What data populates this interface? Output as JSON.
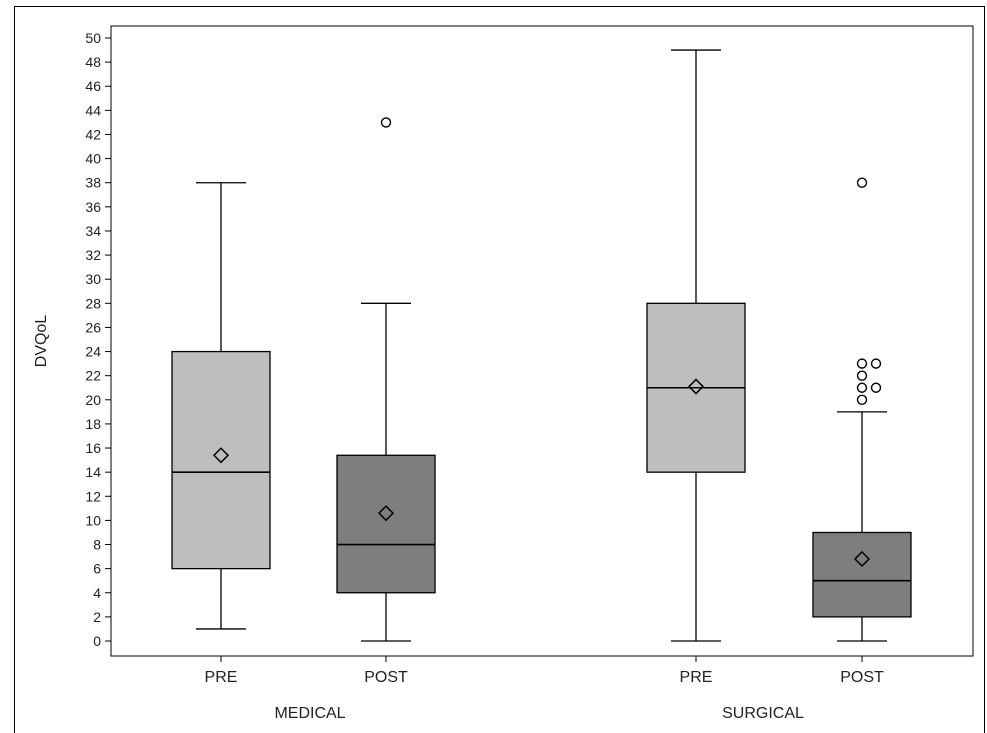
{
  "chart_data": {
    "type": "box",
    "ylabel": "DVQoL",
    "ylim": [
      0,
      50
    ],
    "yticks": [
      0,
      2,
      4,
      6,
      8,
      10,
      12,
      14,
      16,
      18,
      20,
      22,
      24,
      26,
      28,
      30,
      32,
      34,
      36,
      38,
      40,
      42,
      44,
      46,
      48,
      50
    ],
    "grid": false,
    "legend": "none",
    "groups": [
      {
        "name": "MEDICAL",
        "boxes": [
          {
            "label": "PRE",
            "fill": "#bebebe",
            "whisker_low": 1,
            "q1": 6,
            "median": 14,
            "q3": 24,
            "whisker_high": 38,
            "mean": 15.4,
            "outliers": []
          },
          {
            "label": "POST",
            "fill": "#7e7e7e",
            "whisker_low": 0,
            "q1": 4,
            "median": 8,
            "q3": 15.4,
            "whisker_high": 28,
            "mean": 10.6,
            "outliers": [
              43
            ]
          }
        ]
      },
      {
        "name": "SURGICAL",
        "boxes": [
          {
            "label": "PRE",
            "fill": "#bebebe",
            "whisker_low": 0,
            "q1": 14,
            "median": 21,
            "q3": 28,
            "whisker_high": 49,
            "mean": 21.1,
            "outliers": []
          },
          {
            "label": "POST",
            "fill": "#7e7e7e",
            "whisker_low": 0,
            "q1": 2,
            "median": 5,
            "q3": 9,
            "whisker_high": 19,
            "mean": 6.8,
            "outliers": [
              {
                "v": 20,
                "col": 0
              },
              {
                "v": 21,
                "col": 0
              },
              {
                "v": 22,
                "col": 0
              },
              {
                "v": 23,
                "col": 0
              },
              {
                "v": 21,
                "col": 1
              },
              {
                "v": 23,
                "col": 1
              },
              {
                "v": 38,
                "col": 0
              }
            ]
          }
        ]
      }
    ]
  }
}
